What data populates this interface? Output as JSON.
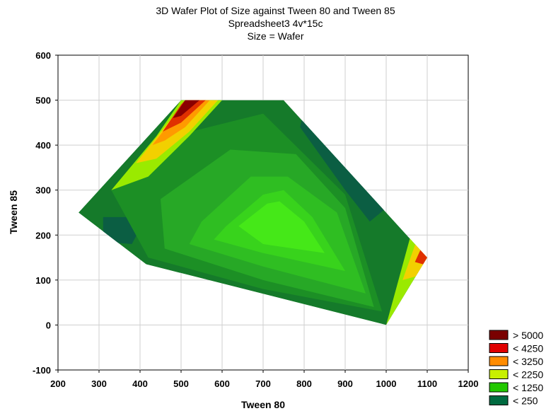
{
  "chart_data": {
    "type": "contour",
    "title": "3D Wafer Plot of Size against Tween 80 and Tween 85",
    "subtitle": "Spreadsheet3 4v*15c",
    "subtitle2": "Size = Wafer",
    "xlabel": "Tween 80",
    "ylabel": "Tween 85",
    "xlim": [
      200,
      1200
    ],
    "ylim": [
      -100,
      600
    ],
    "x_ticks": [
      200,
      300,
      400,
      500,
      600,
      700,
      800,
      900,
      1000,
      1100,
      1200
    ],
    "y_ticks": [
      -100,
      0,
      100,
      200,
      300,
      400,
      500,
      600
    ],
    "grid": true,
    "legend_position": "bottom-right",
    "legend": [
      {
        "label": "> 5000",
        "color": "#7a0000"
      },
      {
        "label": "< 4250",
        "color": "#e00000"
      },
      {
        "label": "< 3250",
        "color": "#ff8c00"
      },
      {
        "label": "< 2250",
        "color": "#c8f000"
      },
      {
        "label": "< 1250",
        "color": "#22c800"
      },
      {
        "label": "< 250",
        "color": "#006a40"
      }
    ],
    "domain_outline": [
      [
        250,
        250
      ],
      [
        500,
        500
      ],
      [
        750,
        500
      ],
      [
        1100,
        150
      ],
      [
        1000,
        0
      ],
      [
        415,
        135
      ],
      [
        250,
        250
      ]
    ],
    "bands": [
      {
        "level": "< 1250",
        "color": "#157a2a",
        "points": [
          [
            250,
            250
          ],
          [
            500,
            500
          ],
          [
            750,
            500
          ],
          [
            1100,
            150
          ],
          [
            1000,
            0
          ],
          [
            415,
            135
          ]
        ]
      },
      {
        "level": "< 250",
        "color": "#0b5e43",
        "points": [
          [
            310,
            240
          ],
          [
            415,
            240
          ],
          [
            380,
            180
          ],
          [
            310,
            185
          ]
        ]
      },
      {
        "level": "< 250",
        "color": "#0b5e43",
        "points": [
          [
            790,
            440
          ],
          [
            900,
            300
          ],
          [
            960,
            230
          ],
          [
            1000,
            260
          ],
          [
            950,
            350
          ],
          [
            800,
            480
          ]
        ]
      },
      {
        "level": "< 1250",
        "color": "#1c8f25",
        "points": [
          [
            330,
            300
          ],
          [
            480,
            420
          ],
          [
            700,
            470
          ],
          [
            900,
            290
          ],
          [
            990,
            30
          ],
          [
            700,
            80
          ],
          [
            420,
            150
          ]
        ]
      },
      {
        "level": "< 1250",
        "color": "#27a826",
        "points": [
          [
            450,
            280
          ],
          [
            620,
            390
          ],
          [
            780,
            380
          ],
          [
            900,
            260
          ],
          [
            970,
            40
          ],
          [
            700,
            100
          ],
          [
            460,
            170
          ]
        ]
      },
      {
        "level": "< 1250",
        "color": "#2fbe22",
        "points": [
          [
            550,
            230
          ],
          [
            670,
            330
          ],
          [
            760,
            330
          ],
          [
            880,
            250
          ],
          [
            950,
            70
          ],
          [
            700,
            130
          ],
          [
            520,
            180
          ]
        ]
      },
      {
        "level": "< 1250",
        "color": "#38d31c",
        "points": [
          [
            610,
            220
          ],
          [
            700,
            290
          ],
          [
            750,
            300
          ],
          [
            820,
            240
          ],
          [
            900,
            120
          ],
          [
            700,
            160
          ],
          [
            580,
            190
          ]
        ]
      },
      {
        "level": "< 250",
        "color": "#45e818",
        "points": [
          [
            640,
            220
          ],
          [
            710,
            270
          ],
          [
            740,
            275
          ],
          [
            800,
            230
          ],
          [
            850,
            160
          ],
          [
            700,
            180
          ]
        ]
      },
      {
        "level": "< 2250",
        "color": "#9aea00",
        "points": [
          [
            330,
            300
          ],
          [
            440,
            420
          ],
          [
            500,
            500
          ],
          [
            600,
            500
          ],
          [
            520,
            420
          ],
          [
            420,
            330
          ]
        ]
      },
      {
        "level": "< 3250",
        "color": "#f2d000",
        "points": [
          [
            390,
            360
          ],
          [
            460,
            440
          ],
          [
            510,
            500
          ],
          [
            590,
            500
          ],
          [
            520,
            430
          ],
          [
            440,
            370
          ]
        ]
      },
      {
        "level": "< 3250",
        "color": "#ff9a00",
        "points": [
          [
            430,
            400
          ],
          [
            490,
            470
          ],
          [
            520,
            500
          ],
          [
            570,
            500
          ],
          [
            510,
            440
          ],
          [
            460,
            410
          ]
        ]
      },
      {
        "level": "< 4250",
        "color": "#e03000",
        "points": [
          [
            455,
            430
          ],
          [
            500,
            490
          ],
          [
            510,
            500
          ],
          [
            560,
            500
          ],
          [
            500,
            450
          ]
        ]
      },
      {
        "level": "> 5000",
        "color": "#8a0000",
        "points": [
          [
            480,
            460
          ],
          [
            510,
            500
          ],
          [
            545,
            500
          ],
          [
            500,
            465
          ]
        ]
      },
      {
        "level": "< 2250",
        "color": "#9aea00",
        "points": [
          [
            1000,
            0
          ],
          [
            1060,
            200
          ],
          [
            1100,
            150
          ]
        ]
      },
      {
        "level": "< 3250",
        "color": "#f2d000",
        "points": [
          [
            1040,
            100
          ],
          [
            1075,
            190
          ],
          [
            1100,
            150
          ],
          [
            1080,
            110
          ]
        ]
      },
      {
        "level": "< 4250",
        "color": "#e03000",
        "points": [
          [
            1070,
            140
          ],
          [
            1085,
            170
          ],
          [
            1100,
            150
          ],
          [
            1090,
            135
          ]
        ]
      }
    ]
  }
}
